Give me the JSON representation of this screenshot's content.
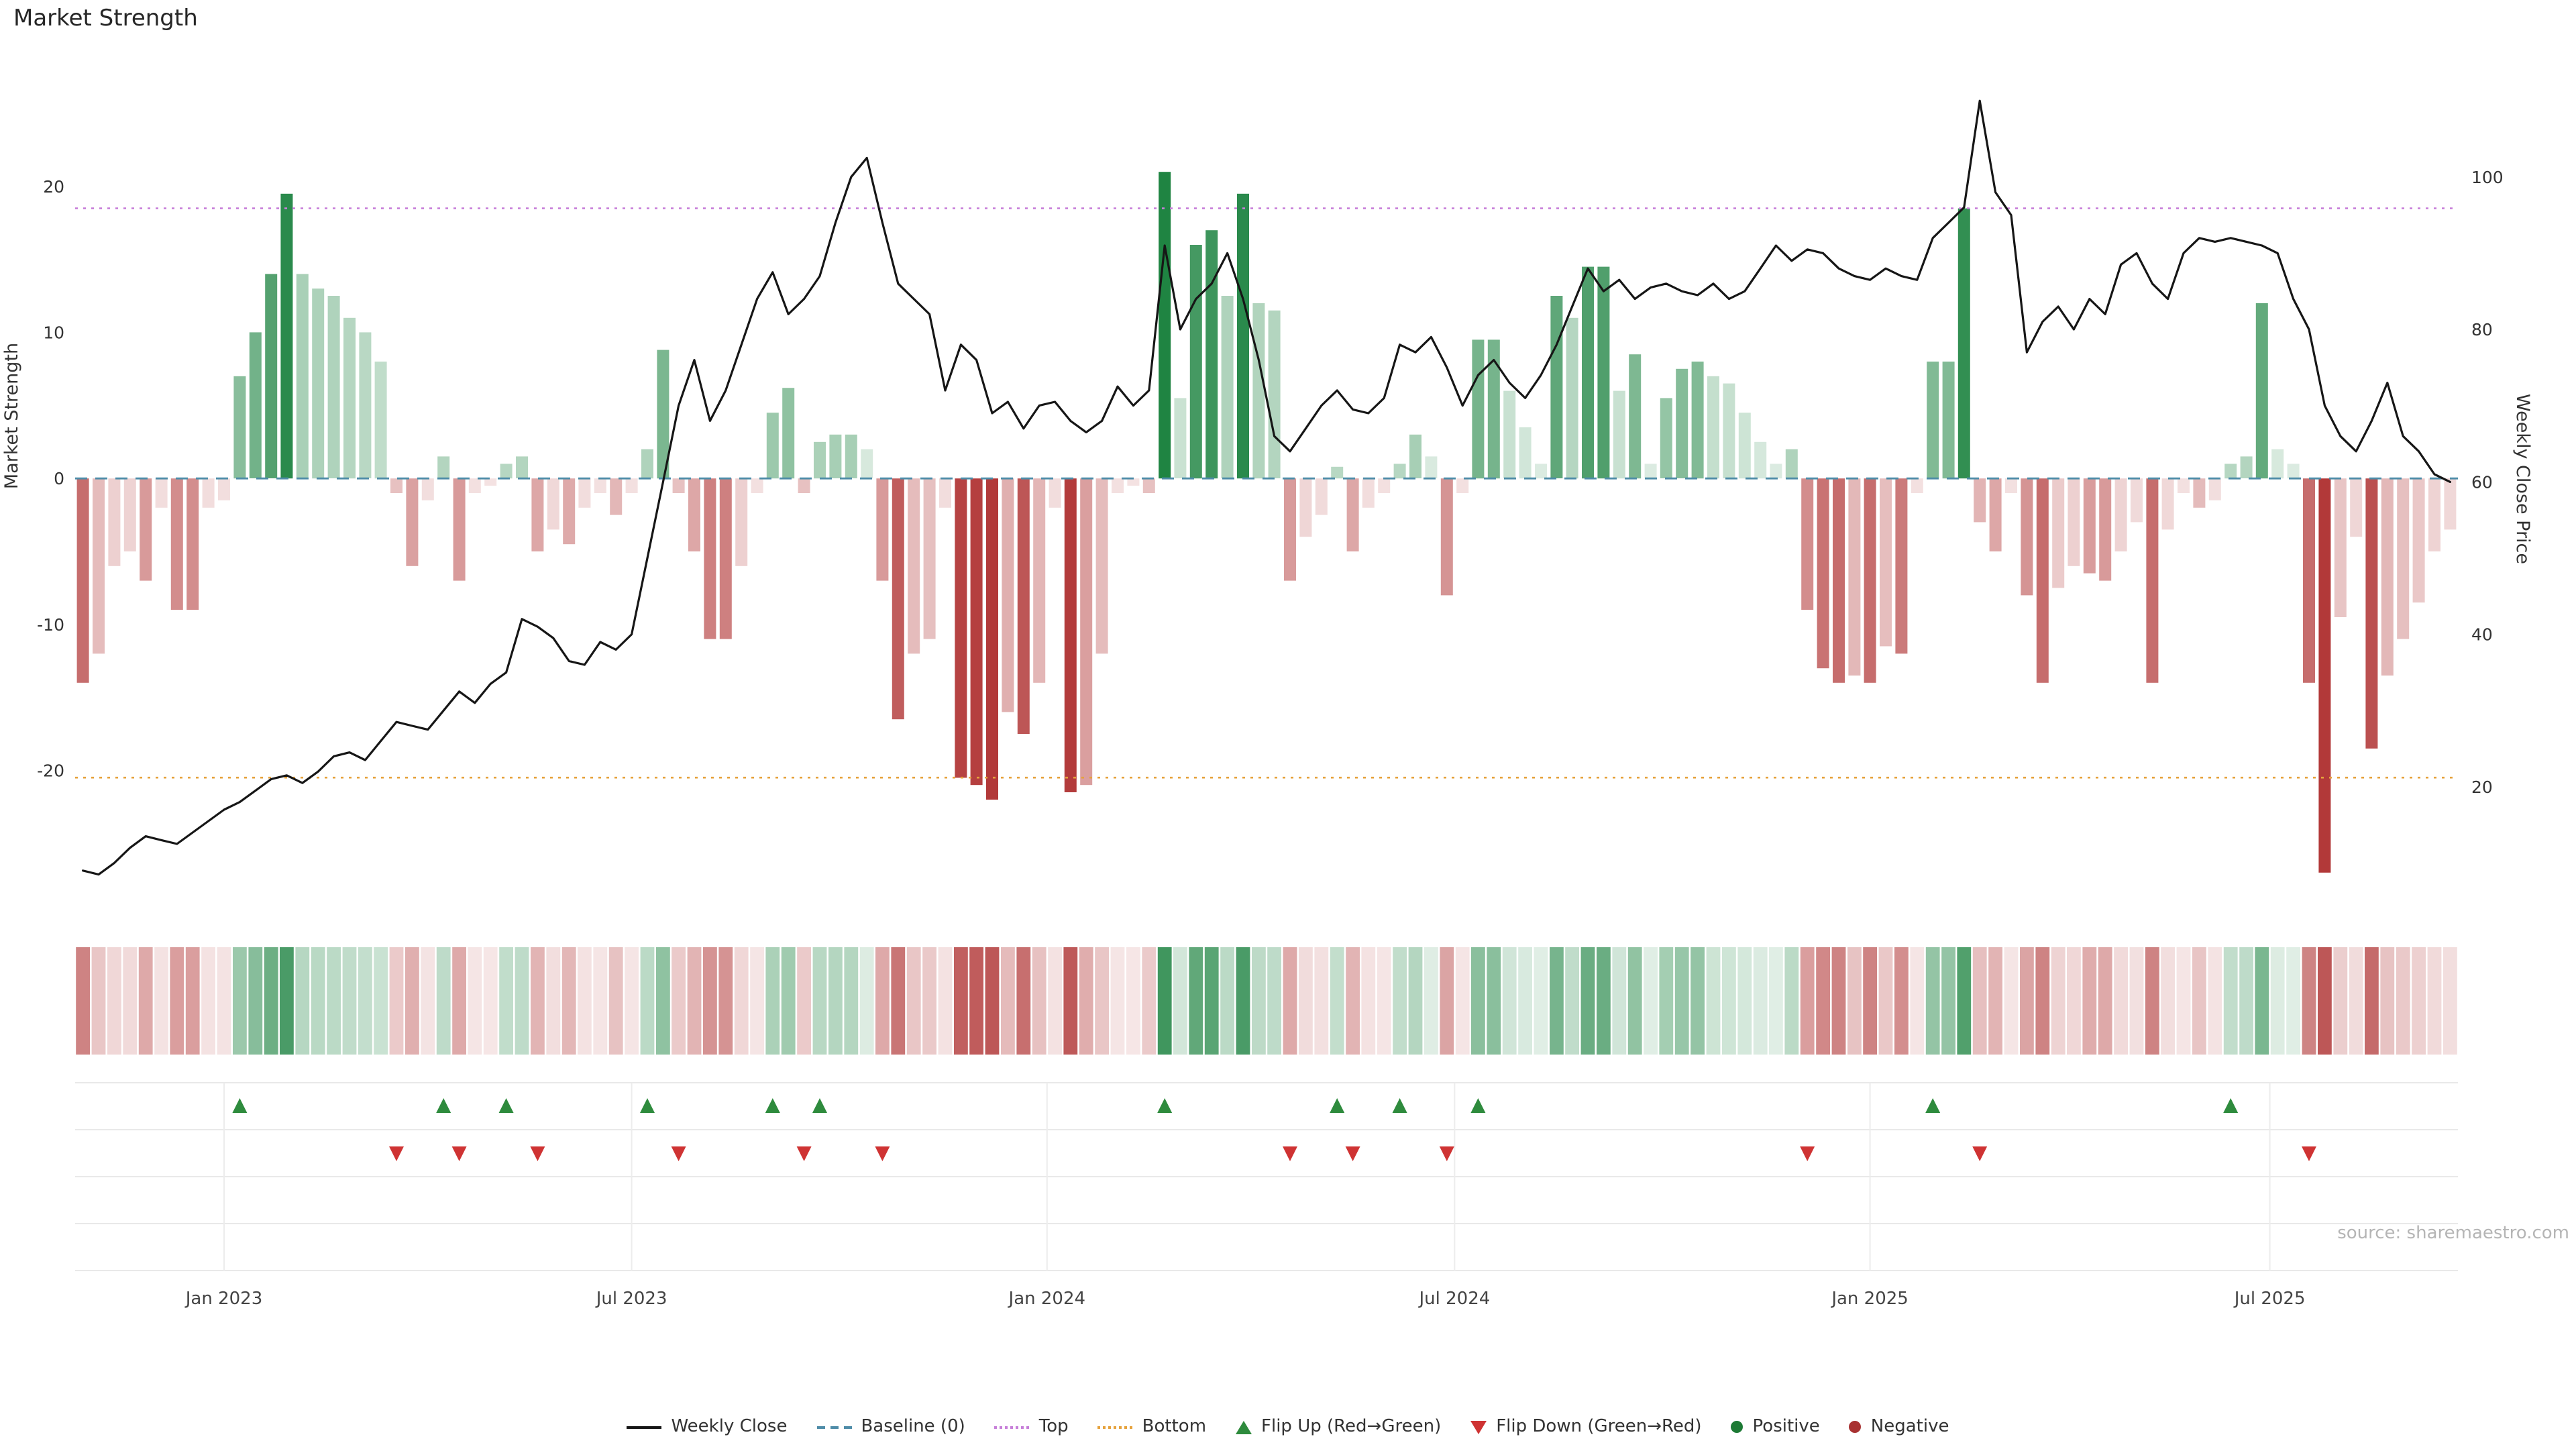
{
  "title": "Market Strength",
  "source": "source: sharemaestro.com",
  "chart_data": {
    "type": "combo_bar_line_weekly",
    "x_tick_labels": [
      "Jan 2023",
      "Jul 2023",
      "Jan 2024",
      "Jul 2024",
      "Jan 2025",
      "Jul 2025"
    ],
    "x_tick_indices": [
      9,
      35,
      61.5,
      87.5,
      114,
      139.5
    ],
    "left_axis": {
      "label": "Market Strength",
      "ticks": [
        -20,
        -10,
        0,
        10,
        20
      ],
      "range": [
        -30,
        29
      ]
    },
    "right_axis": {
      "label": "Weekly Close Price",
      "ticks": [
        20,
        40,
        60,
        80,
        100
      ],
      "range": [
        3,
        116
      ]
    },
    "reference_lines": {
      "baseline": 0,
      "top": 18.5,
      "bottom": -20.5
    },
    "series": [
      {
        "name": "Market Strength",
        "type": "bar",
        "axis": "left",
        "values": [
          -14,
          -12,
          -6,
          -5,
          -7,
          -2,
          -9,
          -9,
          -2,
          -1.5,
          7,
          10,
          14,
          19.5,
          14,
          13,
          12.5,
          11,
          10,
          8,
          -1,
          -6,
          -1.5,
          1.5,
          -7,
          -1,
          -0.5,
          1,
          1.5,
          -5,
          -3.5,
          -4.5,
          -2,
          -1,
          -2.5,
          -1,
          2,
          8.8,
          -1,
          -5,
          -11,
          -11,
          -6,
          -1,
          4.5,
          6.2,
          -1,
          2.5,
          3,
          3,
          2,
          -7,
          -16.5,
          -12,
          -11,
          -2,
          -20.5,
          -21,
          -22,
          -16,
          -17.5,
          -14,
          -2,
          -21.5,
          -21,
          -12,
          -1,
          -0.5,
          -1,
          21,
          5.5,
          16,
          17,
          12.5,
          19.5,
          12,
          11.5,
          -7,
          -4,
          -2.5,
          0.8,
          -5,
          -2,
          -1,
          1,
          3,
          1.5,
          -8,
          -1,
          9.5,
          9.5,
          6,
          3.5,
          1,
          12.5,
          11,
          14.5,
          14.5,
          6,
          8.5,
          1,
          5.5,
          7.5,
          8,
          7,
          6.5,
          4.5,
          2.5,
          1,
          2,
          -9,
          -13,
          -14,
          -13.5,
          -14,
          -11.5,
          -12,
          -1,
          8,
          8,
          18.5,
          -3,
          -5,
          -1,
          -8,
          -14,
          -7.5,
          -6,
          -6.5,
          -7,
          -5,
          -3,
          -14,
          -3.5,
          -1,
          -2,
          -1.5,
          1,
          1.5,
          12,
          2,
          1,
          -14,
          -27,
          -9.5,
          -4,
          -18.5,
          -13.5,
          -11,
          -8.5,
          -5,
          -3.5
        ]
      },
      {
        "name": "Weekly Close",
        "type": "line",
        "axis": "right",
        "values": [
          9,
          8.5,
          10,
          12,
          13.5,
          13,
          12.5,
          14,
          15.5,
          17,
          18,
          19.5,
          21,
          21.5,
          20.5,
          22,
          24,
          24.5,
          23.5,
          26,
          28.5,
          28,
          27.5,
          30,
          32.5,
          31,
          33.5,
          35,
          42,
          41,
          39.5,
          36.5,
          36,
          39,
          38,
          40,
          50,
          60,
          70,
          76,
          68,
          72,
          78,
          84,
          87.5,
          82,
          84,
          87,
          94,
          100,
          102.5,
          94,
          86,
          84,
          82,
          72,
          78,
          76,
          69,
          70.5,
          67,
          70,
          70.5,
          68,
          66.5,
          68,
          72.5,
          70,
          72,
          91,
          80,
          84,
          86,
          90,
          84,
          76,
          66,
          64,
          67,
          70,
          72,
          69.5,
          69,
          71,
          78,
          77,
          79,
          75,
          70,
          74,
          76,
          73,
          71,
          74,
          78,
          83,
          88,
          85,
          86.5,
          84,
          85.5,
          86,
          85,
          84.5,
          86,
          84,
          85,
          88,
          91,
          89,
          90.5,
          90,
          88,
          87,
          86.5,
          88,
          87,
          86.5,
          92,
          94,
          96,
          110,
          98,
          95,
          77,
          81,
          83,
          80,
          84,
          82,
          88.5,
          90,
          86,
          84,
          90,
          92,
          91.5,
          92,
          91.5,
          91,
          90,
          84,
          80,
          70,
          66,
          64,
          68,
          73,
          66,
          64,
          61,
          60
        ]
      }
    ],
    "flip_up_weeks": [
      10,
      23,
      27,
      36,
      44,
      47,
      69,
      80,
      84,
      89,
      118,
      137
    ],
    "flip_down_weeks": [
      20,
      24,
      29,
      38,
      46,
      51,
      77,
      81,
      87,
      110,
      121,
      142
    ],
    "colors": {
      "line": "#161616",
      "baseline": "#4e8ca8",
      "top": "#c77fd9",
      "bottom": "#e6a23c",
      "positive_dark": "#17803c",
      "negative_dark": "#b23939",
      "flip_up": "#2e8b3d",
      "flip_down": "#cf3333",
      "grid": "#e9e9e9"
    }
  },
  "legend": {
    "items": [
      {
        "label": "Weekly Close",
        "type": "line",
        "color": "#161616"
      },
      {
        "label": "Baseline (0)",
        "type": "dashed",
        "color": "#4e8ca8"
      },
      {
        "label": "Top",
        "type": "dotted",
        "color": "#c77fd9"
      },
      {
        "label": "Bottom",
        "type": "dotted",
        "color": "#e6a23c"
      },
      {
        "label": "Flip Up (Red→Green)",
        "type": "triangle-up",
        "color": "#2e8b3d"
      },
      {
        "label": "Flip Down (Green→Red)",
        "type": "triangle-down",
        "color": "#cf3333"
      },
      {
        "label": "Positive",
        "type": "dot",
        "color": "#1d7a35"
      },
      {
        "label": "Negative",
        "type": "dot",
        "color": "#a83232"
      }
    ]
  }
}
